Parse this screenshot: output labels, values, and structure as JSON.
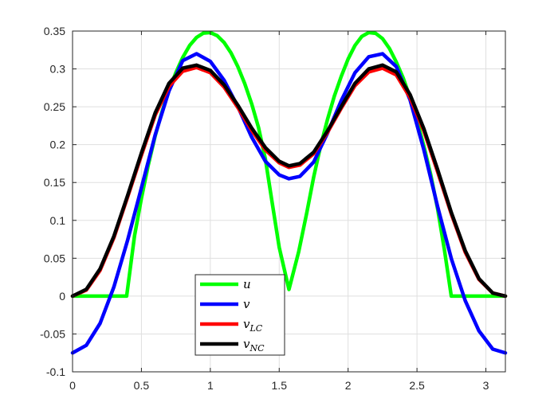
{
  "chart_data": {
    "type": "line",
    "xlim": [
      0,
      3.1416
    ],
    "ylim": [
      -0.1,
      0.35
    ],
    "x_ticks": [
      0,
      0.5,
      1,
      1.5,
      2,
      2.5,
      3
    ],
    "x_tick_labels": [
      "0",
      "0.5",
      "1",
      "1.5",
      "2",
      "2.5",
      "3"
    ],
    "y_ticks": [
      -0.1,
      -0.05,
      0,
      0.05,
      0.1,
      0.15,
      0.2,
      0.25,
      0.3,
      0.35
    ],
    "y_tick_labels": [
      "-0.1",
      "-0.05",
      "0",
      "0.05",
      "0.1",
      "0.15",
      "0.2",
      "0.25",
      "0.3",
      "0.35"
    ],
    "grid": true,
    "legend_position": "bottom-center",
    "series": [
      {
        "name": "u",
        "color": "#00ff00",
        "x": [
          0,
          0.3927,
          0.45,
          0.5,
          0.55,
          0.6,
          0.65,
          0.7,
          0.75,
          0.8,
          0.85,
          0.9,
          0.95,
          1.0,
          1.05,
          1.1,
          1.15,
          1.2,
          1.25,
          1.3,
          1.35,
          1.4,
          1.45,
          1.5,
          1.5708,
          1.6416,
          1.7,
          1.75,
          1.8,
          1.85,
          1.9,
          1.95,
          2.0,
          2.05,
          2.1,
          2.15,
          2.2,
          2.25,
          2.3,
          2.35,
          2.4,
          2.45,
          2.5,
          2.55,
          2.6,
          2.65,
          2.7,
          2.7489,
          3.1416
        ],
        "y": [
          0,
          0,
          0.0797,
          0.1292,
          0.1733,
          0.2116,
          0.2439,
          0.2717,
          0.2951,
          0.3152,
          0.331,
          0.3416,
          0.3473,
          0.348,
          0.3439,
          0.3349,
          0.3212,
          0.3029,
          0.2805,
          0.254,
          0.2225,
          0.1806,
          0.1221,
          0.0644,
          0.0087,
          0.0587,
          0.11,
          0.157,
          0.198,
          0.233,
          0.264,
          0.29,
          0.313,
          0.331,
          0.343,
          0.348,
          0.347,
          0.34,
          0.327,
          0.309,
          0.288,
          0.262,
          0.232,
          0.198,
          0.16,
          0.115,
          0.06,
          0,
          0
        ]
      },
      {
        "name": "v",
        "color": "#0000ff",
        "x": [
          0,
          0.1,
          0.2,
          0.3,
          0.4,
          0.5,
          0.6,
          0.7,
          0.8,
          0.9,
          1.0,
          1.1,
          1.2,
          1.3,
          1.4,
          1.5,
          1.5708,
          1.65,
          1.75,
          1.85,
          1.95,
          2.05,
          2.15,
          2.25,
          2.35,
          2.45,
          2.55,
          2.65,
          2.75,
          2.85,
          2.95,
          3.05,
          3.1416
        ],
        "y": [
          -0.075,
          -0.065,
          -0.036,
          0.012,
          0.074,
          0.143,
          0.213,
          0.271,
          0.311,
          0.32,
          0.31,
          0.285,
          0.25,
          0.21,
          0.178,
          0.16,
          0.155,
          0.158,
          0.177,
          0.215,
          0.258,
          0.295,
          0.316,
          0.32,
          0.303,
          0.259,
          0.193,
          0.118,
          0.049,
          -0.006,
          -0.046,
          -0.07,
          -0.075
        ]
      },
      {
        "name": "v_LC",
        "color": "#ff0000",
        "x": [
          0,
          0.1,
          0.2,
          0.3,
          0.4,
          0.5,
          0.6,
          0.7,
          0.8,
          0.9,
          1.0,
          1.1,
          1.2,
          1.3,
          1.4,
          1.5,
          1.5708,
          1.65,
          1.75,
          1.85,
          1.95,
          2.05,
          2.15,
          2.25,
          2.35,
          2.45,
          2.55,
          2.65,
          2.75,
          2.85,
          2.95,
          3.05,
          3.1416
        ],
        "y": [
          0,
          0.008,
          0.034,
          0.077,
          0.131,
          0.186,
          0.239,
          0.277,
          0.297,
          0.302,
          0.295,
          0.276,
          0.249,
          0.219,
          0.193,
          0.176,
          0.17,
          0.173,
          0.188,
          0.216,
          0.248,
          0.278,
          0.296,
          0.301,
          0.292,
          0.262,
          0.218,
          0.164,
          0.108,
          0.058,
          0.022,
          0.004,
          0
        ]
      },
      {
        "name": "v_NC",
        "color": "#000000",
        "x": [
          0,
          0.1,
          0.2,
          0.3,
          0.4,
          0.5,
          0.6,
          0.7,
          0.8,
          0.9,
          1.0,
          1.1,
          1.2,
          1.3,
          1.4,
          1.5,
          1.5708,
          1.65,
          1.75,
          1.85,
          1.95,
          2.05,
          2.15,
          2.25,
          2.35,
          2.45,
          2.55,
          2.65,
          2.75,
          2.85,
          2.95,
          3.05,
          3.1416
        ],
        "y": [
          0,
          0.009,
          0.036,
          0.079,
          0.133,
          0.189,
          0.242,
          0.281,
          0.301,
          0.305,
          0.298,
          0.279,
          0.252,
          0.222,
          0.196,
          0.178,
          0.172,
          0.175,
          0.19,
          0.218,
          0.25,
          0.281,
          0.3,
          0.305,
          0.296,
          0.266,
          0.221,
          0.167,
          0.11,
          0.06,
          0.023,
          0.004,
          0
        ]
      }
    ]
  },
  "legend": {
    "entries": [
      {
        "main": "u",
        "sub": ""
      },
      {
        "main": "v",
        "sub": ""
      },
      {
        "main": "v",
        "sub": "LC"
      },
      {
        "main": "v",
        "sub": "NC"
      }
    ]
  }
}
